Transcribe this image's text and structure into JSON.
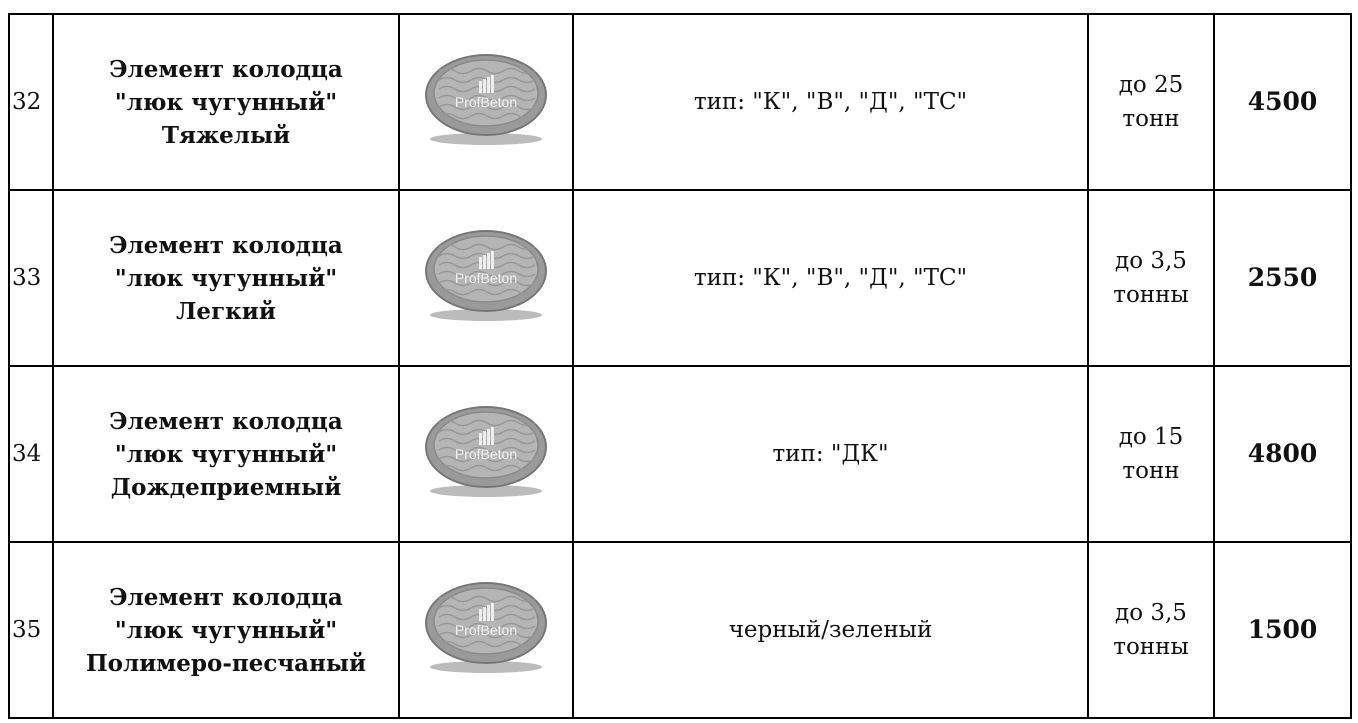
{
  "table": {
    "image_label": "ProfBeton",
    "rows": [
      {
        "number": "32",
        "name_lines": [
          "Элемент колодца",
          "\"люк чугунный\"",
          "Тяжелый"
        ],
        "spec": "тип: \"К\", \"В\", \"Д\", \"ТС\"",
        "load": "до 25 тонн",
        "price": "4500"
      },
      {
        "number": "33",
        "name_lines": [
          "Элемент колодца",
          "\"люк чугунный\"",
          "Легкий"
        ],
        "spec": "тип: \"К\", \"В\", \"Д\", \"ТС\"",
        "load": "до 3,5 тонны",
        "price": "2550"
      },
      {
        "number": "34",
        "name_lines": [
          "Элемент колодца",
          "\"люк чугунный\"",
          "Дождеприемный"
        ],
        "spec": "тип: \"ДК\"",
        "load": "до 15 тонн",
        "price": "4800"
      },
      {
        "number": "35",
        "name_lines": [
          "Элемент колодца",
          "\"люк чугунный\"",
          "Полимеро-песчаный"
        ],
        "spec": "черный/зеленый",
        "load": "до 3,5 тонны",
        "price": "1500"
      }
    ]
  }
}
